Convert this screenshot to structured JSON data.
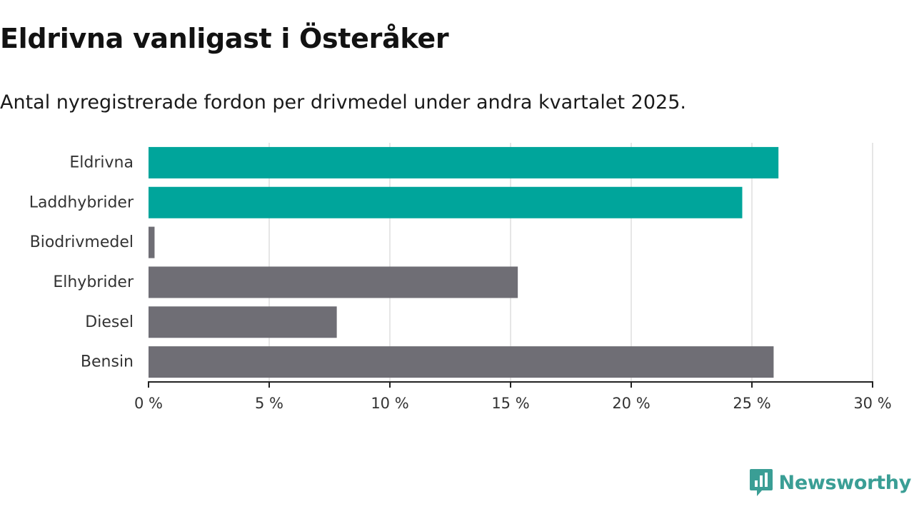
{
  "title": "Eldrivna vanligast i Österåker",
  "subtitle": "Antal nyregistrerade fordon per drivmedel under andra kvartalet 2025.",
  "brand": {
    "name": "Newsworthy",
    "icon": "newsworthy-logo-icon",
    "color": "#3a9e95"
  },
  "chart_data": {
    "type": "bar",
    "orientation": "horizontal",
    "categories": [
      "Eldrivna",
      "Laddhybrider",
      "Biodrivmedel",
      "Elhybrider",
      "Diesel",
      "Bensin"
    ],
    "values": [
      26.1,
      24.6,
      0.25,
      15.3,
      7.8,
      25.9
    ],
    "colors": [
      "#00a59b",
      "#00a59b",
      "#6f6e75",
      "#6f6e75",
      "#6f6e75",
      "#6f6e75"
    ],
    "x_ticks": [
      "0 %",
      "5 %",
      "10 %",
      "15 %",
      "20 %",
      "25 %",
      "30 %"
    ],
    "tick_values": [
      0,
      5,
      10,
      15,
      20,
      25,
      30
    ],
    "xlim": [
      0,
      30
    ],
    "grid": true,
    "xlabel": "",
    "ylabel": ""
  }
}
